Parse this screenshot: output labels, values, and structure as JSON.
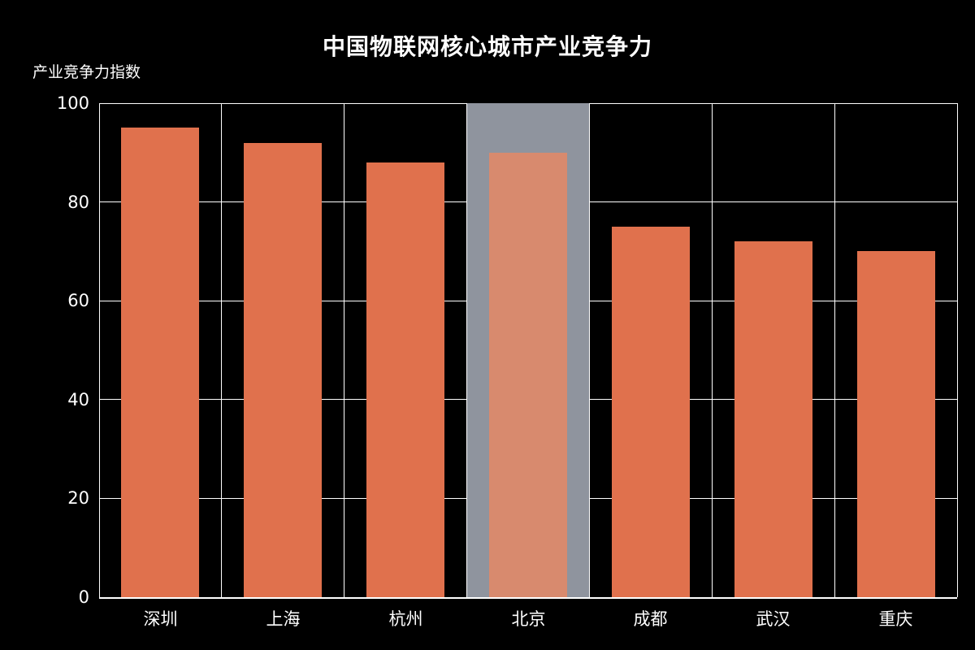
{
  "chart_data": {
    "type": "bar",
    "title": "中国物联网核心城市产业竞争力",
    "ylabel": "产业竞争力指数",
    "categories": [
      "深圳",
      "上海",
      "杭州",
      "北京",
      "成都",
      "武汉",
      "重庆"
    ],
    "values": [
      95,
      92,
      88,
      90,
      75,
      72,
      70
    ],
    "ylim": [
      0,
      100
    ],
    "yticks": [
      0,
      20,
      40,
      60,
      80,
      100
    ],
    "grid": true,
    "legend": "none",
    "highlight": {
      "category": "北京",
      "style": "hover-shadow-band"
    },
    "colors": {
      "background": "#000000",
      "bar": "#E0714D",
      "highlighted_bar": "#D88A6E",
      "highlight_band": "#8F949E",
      "grid": "#FFFFFF",
      "text": "#FFFFFF"
    }
  }
}
